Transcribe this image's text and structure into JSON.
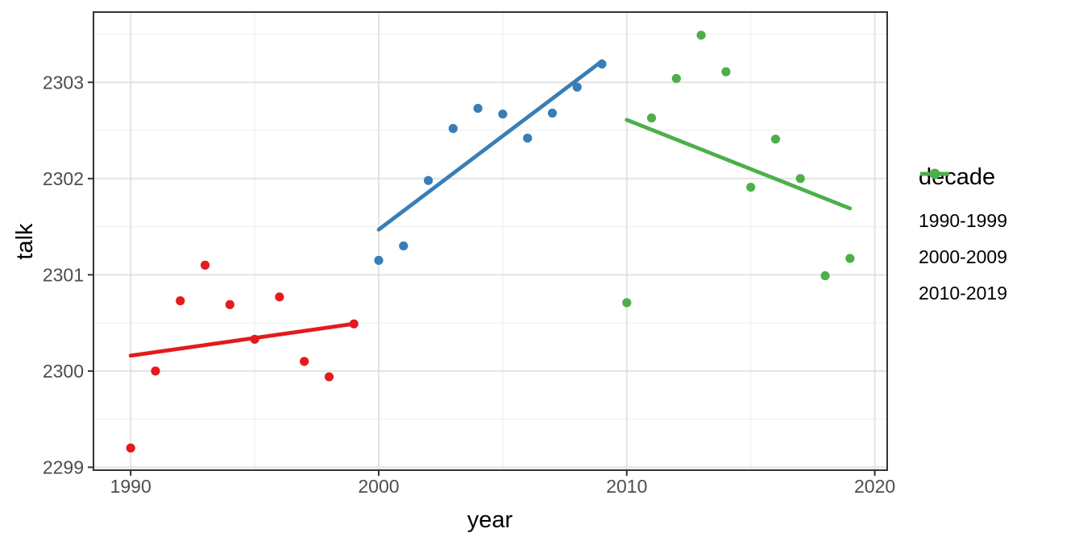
{
  "chart_data": {
    "type": "scatter",
    "title": "",
    "xlabel": "year",
    "ylabel": "talk",
    "legend_title": "decade",
    "legend_position": "right",
    "grid": true,
    "xlim": [
      1988.5,
      2020.5
    ],
    "ylim": [
      2298.97,
      2303.73
    ],
    "x_ticks": [
      1990,
      2000,
      2010,
      2020
    ],
    "x_minor_ticks": [
      1995,
      2005,
      2015
    ],
    "y_ticks": [
      2299,
      2300,
      2301,
      2302,
      2303
    ],
    "y_minor_ticks": [
      2299.5,
      2300.5,
      2301.5,
      2302.5,
      2303.5
    ],
    "series": [
      {
        "name": "1990-1999",
        "color": "#E41A1C",
        "x": [
          1990,
          1991,
          1992,
          1993,
          1994,
          1995,
          1996,
          1997,
          1998,
          1999
        ],
        "y": [
          2299.2,
          2300.0,
          2300.73,
          2301.1,
          2300.69,
          2300.33,
          2300.77,
          2300.1,
          2299.94,
          2300.49
        ],
        "trend": {
          "x1": 1990,
          "y1": 2300.16,
          "x2": 1999,
          "y2": 2300.49
        }
      },
      {
        "name": "2000-2009",
        "color": "#377EB8",
        "x": [
          2000,
          2001,
          2002,
          2003,
          2004,
          2005,
          2006,
          2007,
          2008,
          2009
        ],
        "y": [
          2301.15,
          2301.3,
          2301.98,
          2302.52,
          2302.73,
          2302.67,
          2302.42,
          2302.68,
          2302.95,
          2303.19
        ],
        "trend": {
          "x1": 2000,
          "y1": 2301.47,
          "x2": 2009,
          "y2": 2303.22
        }
      },
      {
        "name": "2010-2019",
        "color": "#4DAF4A",
        "x": [
          2010,
          2011,
          2012,
          2013,
          2014,
          2015,
          2016,
          2017,
          2018,
          2019
        ],
        "y": [
          2300.71,
          2302.63,
          2303.04,
          2303.49,
          2303.11,
          2301.91,
          2302.41,
          2302.0,
          2300.99,
          2301.17
        ],
        "trend": {
          "x1": 2010,
          "y1": 2302.61,
          "x2": 2019,
          "y2": 2301.69
        }
      }
    ],
    "colors": {
      "background": "#FFFFFF",
      "panel_background": "#FFFFFF",
      "grid_major": "#E3E3E3",
      "grid_minor": "#EFEFEF",
      "panel_border": "#333333",
      "tick_mark": "#333333",
      "tick_label": "#4D4D4D",
      "axis_title": "#000000",
      "legend_text": "#000000"
    }
  }
}
